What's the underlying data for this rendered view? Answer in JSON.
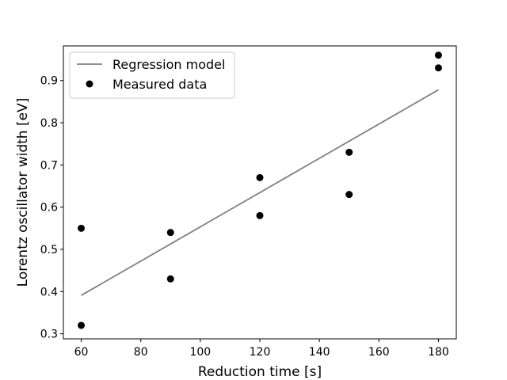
{
  "chart_data": {
    "type": "scatter",
    "title": "",
    "xlabel": "Reduction time [s]",
    "ylabel": "Lorentz oscillator width [eV]",
    "xlim": [
      54,
      186
    ],
    "ylim": [
      0.288,
      0.982
    ],
    "xticks": [
      60,
      80,
      100,
      120,
      140,
      160,
      180
    ],
    "yticks": [
      0.3,
      0.4,
      0.5,
      0.6,
      0.7,
      0.8,
      0.9
    ],
    "grid": false,
    "legend": "upper-left",
    "series": [
      {
        "name": "Regression model",
        "kind": "line",
        "color": "#808080",
        "x": [
          60,
          180
        ],
        "y": [
          0.391,
          0.878
        ]
      },
      {
        "name": "Measured data",
        "kind": "scatter",
        "color": "#000000",
        "x": [
          60,
          60,
          90,
          90,
          120,
          120,
          150,
          150,
          180,
          180
        ],
        "y": [
          0.55,
          0.32,
          0.54,
          0.43,
          0.67,
          0.58,
          0.73,
          0.63,
          0.96,
          0.93
        ]
      }
    ]
  }
}
